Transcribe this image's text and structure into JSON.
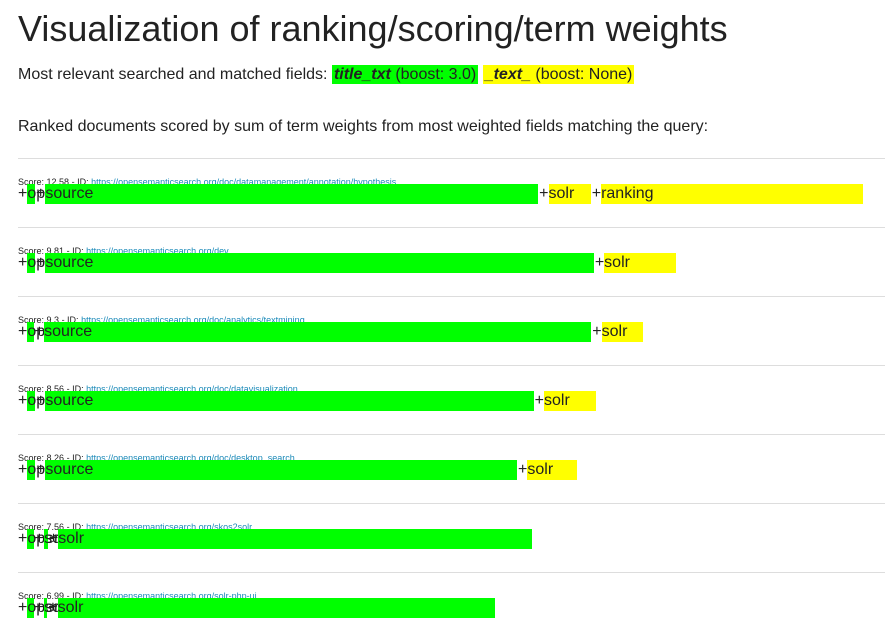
{
  "header": {
    "title": "Visualization of ranking/scoring/term weights"
  },
  "fields": {
    "label": "Most relevant searched and matched fields:",
    "items": [
      {
        "name": "title_txt",
        "boost": "(boost: 3.0)",
        "color": "#00ff00"
      },
      {
        "name": "_text_",
        "boost": "(boost: None)",
        "color": "#ffff00"
      }
    ]
  },
  "description": "Ranked documents scored by sum of term weights from most weighted fields matching the query:",
  "labels": {
    "score": "Score:",
    "id": "- ID:",
    "plus": "+"
  },
  "documents": [
    {
      "score": 12.58,
      "id": "https://opensemanticsearch.org/doc/datamanagement/annotation/hypothesis",
      "terms": [
        {
          "term": "open",
          "field": 0,
          "weight": 0.12
        },
        {
          "term": "source",
          "field": 0,
          "weight": 7.7
        },
        {
          "term": "solr",
          "field": 1,
          "weight": 0.66
        },
        {
          "term": "ranking",
          "field": 1,
          "weight": 4.1
        }
      ]
    },
    {
      "score": 9.81,
      "id": "https://opensemanticsearch.org/dev",
      "terms": [
        {
          "term": "open",
          "field": 0,
          "weight": 0.12
        },
        {
          "term": "source",
          "field": 0,
          "weight": 8.57
        },
        {
          "term": "solr",
          "field": 1,
          "weight": 1.12
        }
      ]
    },
    {
      "score": 9.3,
      "id": "https://opensemanticsearch.org/doc/analytics/textmining",
      "terms": [
        {
          "term": "open",
          "field": 0,
          "weight": 0.1
        },
        {
          "term": "source",
          "field": 0,
          "weight": 8.55
        },
        {
          "term": "solr",
          "field": 1,
          "weight": 0.65
        }
      ]
    },
    {
      "score": 8.56,
      "id": "https://opensemanticsearch.org/doc/datavisualization",
      "terms": [
        {
          "term": "open",
          "field": 0,
          "weight": 0.12
        },
        {
          "term": "source",
          "field": 0,
          "weight": 7.63
        },
        {
          "term": "solr",
          "field": 1,
          "weight": 0.81
        }
      ]
    },
    {
      "score": 8.26,
      "id": "https://opensemanticsearch.org/doc/desktop_search",
      "terms": [
        {
          "term": "open",
          "field": 0,
          "weight": 0.12
        },
        {
          "term": "source",
          "field": 0,
          "weight": 7.37
        },
        {
          "term": "solr",
          "field": 1,
          "weight": 0.77
        }
      ]
    },
    {
      "score": 7.56,
      "id": "https://opensemanticsearch.org/skos2solr",
      "terms": [
        {
          "term": "open",
          "field": 0,
          "weight": 0.1
        },
        {
          "term": "source",
          "field": 0,
          "weight": 0.06
        },
        {
          "term": "solr",
          "field": 0,
          "weight": 7.4
        }
      ]
    },
    {
      "score": 6.99,
      "id": "https://opensemanticsearch.org/solr-php-ui",
      "terms": [
        {
          "term": "open",
          "field": 0,
          "weight": 0.1
        },
        {
          "term": "source",
          "field": 0,
          "weight": 0.05
        },
        {
          "term": "solr",
          "field": 0,
          "weight": 6.84
        }
      ]
    }
  ]
}
